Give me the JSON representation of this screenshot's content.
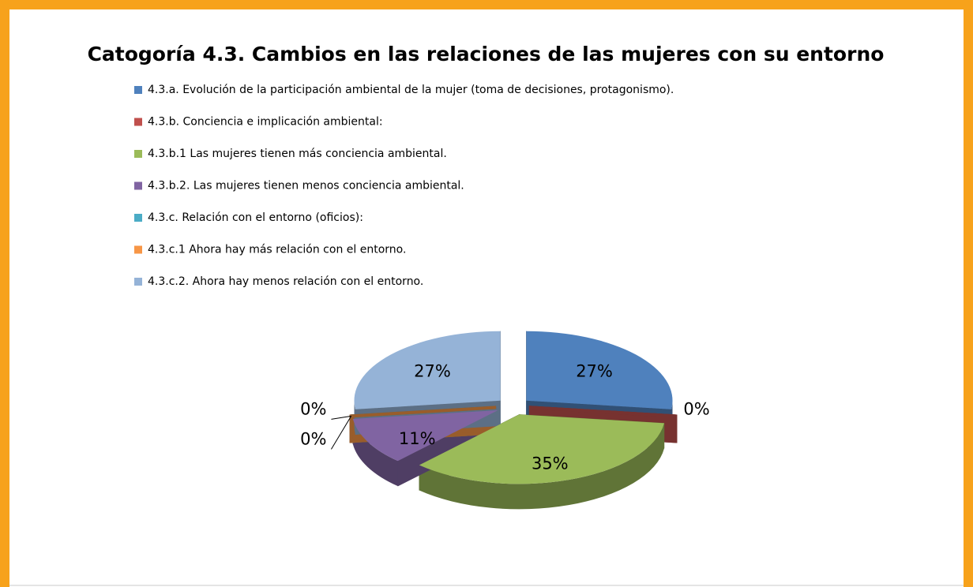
{
  "chart_data": {
    "type": "pie3d",
    "title": "Catogoría 4.3. Cambios en las relaciones de las mujeres con su entorno",
    "categories": [
      "4.3.a. Evolución de la participación ambiental de la mujer (toma de decisiones, protagonismo).",
      "4.3.b. Conciencia e implicación ambiental:",
      "4.3.b.1 Las mujeres tienen más conciencia ambiental.",
      "4.3.b.2. Las mujeres tienen menos conciencia ambiental.",
      "4.3.c. Relación con el entorno (oficios):",
      "4.3.c.1 Ahora hay más relación con el entorno.",
      "4.3.c.2. Ahora hay menos relación con el entorno."
    ],
    "values": [
      27,
      0,
      35,
      11,
      0,
      0,
      27
    ],
    "value_labels": [
      "27%",
      "0%",
      "35%",
      "11%",
      "0%",
      "0%",
      "27%"
    ],
    "colors": [
      "#4f81bd",
      "#c0504d",
      "#9bbb59",
      "#8064a2",
      "#4bacc6",
      "#f79646",
      "#95b3d7"
    ],
    "legend": "top-left"
  }
}
